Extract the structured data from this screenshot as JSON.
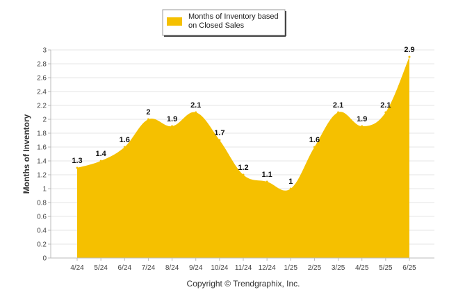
{
  "chart_data": {
    "type": "area",
    "categories": [
      "4/24",
      "5/24",
      "6/24",
      "7/24",
      "8/24",
      "9/24",
      "10/24",
      "11/24",
      "12/24",
      "1/25",
      "2/25",
      "3/25",
      "4/25",
      "5/25",
      "6/25"
    ],
    "series": [
      {
        "name": "Months of Inventory based on Closed Sales",
        "values": [
          1.3,
          1.4,
          1.6,
          2,
          1.9,
          2.1,
          1.7,
          1.2,
          1.1,
          1,
          1.6,
          2.1,
          1.9,
          2.1,
          2.9
        ],
        "data_labels": [
          "1.3",
          "1.4",
          "1.6",
          "2",
          "1.9",
          "2.1",
          "1.7",
          "1.2",
          "1.1",
          "1",
          "1.6",
          "2.1",
          "1.9",
          "2.1",
          "2.9"
        ],
        "color": "#F5C000"
      }
    ],
    "ylabel": "Months of Inventory",
    "ylim": [
      0,
      3
    ],
    "yticks": [
      "0",
      "0.2",
      "0.4",
      "0.6",
      "0.8",
      "1",
      "1.2",
      "1.4",
      "1.6",
      "1.8",
      "2",
      "2.2",
      "2.4",
      "2.6",
      "2.8",
      "3"
    ],
    "grid": true,
    "legend": {
      "position": "top-center",
      "lines": [
        "Months of Inventory based",
        "on Closed Sales"
      ]
    }
  },
  "copyright": "Copyright © Trendgraphix, Inc."
}
